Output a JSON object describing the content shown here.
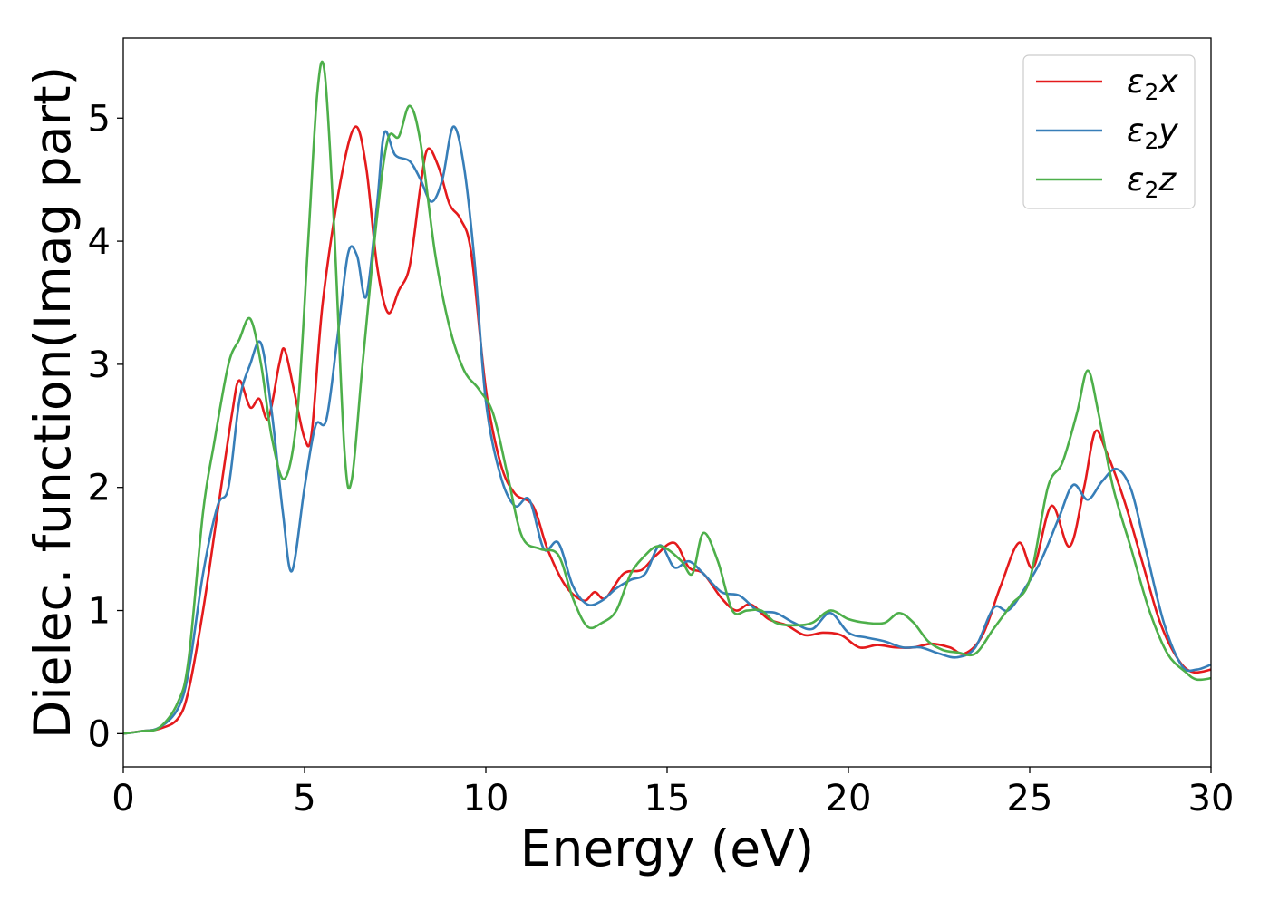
{
  "chart_data": {
    "type": "line",
    "title": "",
    "xlabel": "Energy (eV)",
    "ylabel": "Dielec. function(Imag part)",
    "xlim": [
      0,
      30
    ],
    "ylim": [
      -0.27,
      5.65
    ],
    "xticks": [
      0,
      5,
      10,
      15,
      20,
      25,
      30
    ],
    "yticks": [
      0,
      1,
      2,
      3,
      4,
      5
    ],
    "grid": false,
    "legend_position": "top-right",
    "series": [
      {
        "name": "ε₂x",
        "legend": {
          "base": "ε",
          "sub": "2",
          "suffix": "x"
        },
        "color": "#e41a1c",
        "points": [
          [
            0,
            0
          ],
          [
            0.5,
            0.02
          ],
          [
            1.0,
            0.04
          ],
          [
            1.5,
            0.12
          ],
          [
            1.8,
            0.35
          ],
          [
            2.2,
            1.0
          ],
          [
            2.6,
            1.8
          ],
          [
            3.0,
            2.6
          ],
          [
            3.2,
            2.87
          ],
          [
            3.5,
            2.65
          ],
          [
            3.75,
            2.72
          ],
          [
            4.0,
            2.56
          ],
          [
            4.3,
            3.0
          ],
          [
            4.45,
            3.12
          ],
          [
            4.7,
            2.8
          ],
          [
            5.0,
            2.4
          ],
          [
            5.2,
            2.45
          ],
          [
            5.5,
            3.5
          ],
          [
            6.0,
            4.5
          ],
          [
            6.4,
            4.93
          ],
          [
            6.7,
            4.6
          ],
          [
            7.0,
            3.8
          ],
          [
            7.3,
            3.42
          ],
          [
            7.6,
            3.6
          ],
          [
            7.9,
            3.8
          ],
          [
            8.2,
            4.45
          ],
          [
            8.4,
            4.75
          ],
          [
            8.7,
            4.6
          ],
          [
            9.0,
            4.3
          ],
          [
            9.3,
            4.18
          ],
          [
            9.6,
            3.9
          ],
          [
            10.0,
            2.8
          ],
          [
            10.4,
            2.2
          ],
          [
            10.8,
            1.95
          ],
          [
            11.3,
            1.85
          ],
          [
            11.7,
            1.5
          ],
          [
            12.2,
            1.2
          ],
          [
            12.7,
            1.08
          ],
          [
            13.0,
            1.15
          ],
          [
            13.3,
            1.1
          ],
          [
            13.8,
            1.3
          ],
          [
            14.3,
            1.33
          ],
          [
            14.7,
            1.45
          ],
          [
            15.2,
            1.55
          ],
          [
            15.6,
            1.35
          ],
          [
            16.0,
            1.3
          ],
          [
            16.5,
            1.1
          ],
          [
            16.9,
            1.0
          ],
          [
            17.3,
            1.05
          ],
          [
            17.8,
            0.93
          ],
          [
            18.3,
            0.88
          ],
          [
            18.8,
            0.8
          ],
          [
            19.3,
            0.82
          ],
          [
            19.8,
            0.8
          ],
          [
            20.3,
            0.7
          ],
          [
            20.8,
            0.72
          ],
          [
            21.3,
            0.7
          ],
          [
            21.8,
            0.7
          ],
          [
            22.3,
            0.73
          ],
          [
            22.8,
            0.7
          ],
          [
            23.2,
            0.65
          ],
          [
            23.7,
            0.8
          ],
          [
            24.2,
            1.2
          ],
          [
            24.7,
            1.55
          ],
          [
            25.1,
            1.35
          ],
          [
            25.6,
            1.85
          ],
          [
            26.1,
            1.52
          ],
          [
            26.5,
            2.0
          ],
          [
            26.8,
            2.45
          ],
          [
            27.1,
            2.3
          ],
          [
            27.6,
            1.9
          ],
          [
            28.1,
            1.4
          ],
          [
            28.6,
            0.9
          ],
          [
            29.1,
            0.6
          ],
          [
            29.5,
            0.5
          ],
          [
            30.0,
            0.52
          ]
        ]
      },
      {
        "name": "ε₂y",
        "legend": {
          "base": "ε",
          "sub": "2",
          "suffix": "y"
        },
        "color": "#377eb8",
        "points": [
          [
            0,
            0
          ],
          [
            0.5,
            0.02
          ],
          [
            1.0,
            0.05
          ],
          [
            1.5,
            0.2
          ],
          [
            1.8,
            0.5
          ],
          [
            2.2,
            1.3
          ],
          [
            2.6,
            1.85
          ],
          [
            2.9,
            2.0
          ],
          [
            3.2,
            2.7
          ],
          [
            3.5,
            3.0
          ],
          [
            3.8,
            3.17
          ],
          [
            4.1,
            2.6
          ],
          [
            4.4,
            1.8
          ],
          [
            4.65,
            1.32
          ],
          [
            5.0,
            2.0
          ],
          [
            5.3,
            2.5
          ],
          [
            5.6,
            2.55
          ],
          [
            5.9,
            3.2
          ],
          [
            6.2,
            3.9
          ],
          [
            6.45,
            3.88
          ],
          [
            6.7,
            3.55
          ],
          [
            7.0,
            4.3
          ],
          [
            7.2,
            4.88
          ],
          [
            7.5,
            4.7
          ],
          [
            7.9,
            4.65
          ],
          [
            8.2,
            4.5
          ],
          [
            8.5,
            4.32
          ],
          [
            8.8,
            4.5
          ],
          [
            9.1,
            4.93
          ],
          [
            9.4,
            4.6
          ],
          [
            9.7,
            3.8
          ],
          [
            10.0,
            2.7
          ],
          [
            10.4,
            2.1
          ],
          [
            10.8,
            1.85
          ],
          [
            11.2,
            1.9
          ],
          [
            11.6,
            1.5
          ],
          [
            12.0,
            1.55
          ],
          [
            12.4,
            1.2
          ],
          [
            12.8,
            1.05
          ],
          [
            13.2,
            1.08
          ],
          [
            13.6,
            1.18
          ],
          [
            14.0,
            1.25
          ],
          [
            14.4,
            1.3
          ],
          [
            14.8,
            1.53
          ],
          [
            15.2,
            1.35
          ],
          [
            15.6,
            1.4
          ],
          [
            16.0,
            1.3
          ],
          [
            16.5,
            1.15
          ],
          [
            17.0,
            1.12
          ],
          [
            17.5,
            1.0
          ],
          [
            18.0,
            0.98
          ],
          [
            18.5,
            0.9
          ],
          [
            19.0,
            0.85
          ],
          [
            19.5,
            0.98
          ],
          [
            20.0,
            0.82
          ],
          [
            20.5,
            0.78
          ],
          [
            21.0,
            0.75
          ],
          [
            21.5,
            0.7
          ],
          [
            22.0,
            0.7
          ],
          [
            22.5,
            0.65
          ],
          [
            23.0,
            0.62
          ],
          [
            23.5,
            0.7
          ],
          [
            24.0,
            1.02
          ],
          [
            24.4,
            1.0
          ],
          [
            24.8,
            1.15
          ],
          [
            25.3,
            1.4
          ],
          [
            25.8,
            1.75
          ],
          [
            26.2,
            2.02
          ],
          [
            26.6,
            1.9
          ],
          [
            27.0,
            2.05
          ],
          [
            27.4,
            2.15
          ],
          [
            27.8,
            1.98
          ],
          [
            28.2,
            1.5
          ],
          [
            28.7,
            0.9
          ],
          [
            29.2,
            0.55
          ],
          [
            29.6,
            0.52
          ],
          [
            30.0,
            0.56
          ]
        ]
      },
      {
        "name": "ε₂z",
        "legend": {
          "base": "ε",
          "sub": "2",
          "suffix": "z"
        },
        "color": "#4daf4a",
        "points": [
          [
            0,
            0
          ],
          [
            0.5,
            0.02
          ],
          [
            1.0,
            0.05
          ],
          [
            1.5,
            0.25
          ],
          [
            1.8,
            0.6
          ],
          [
            2.2,
            1.8
          ],
          [
            2.5,
            2.35
          ],
          [
            2.9,
            3.0
          ],
          [
            3.2,
            3.2
          ],
          [
            3.5,
            3.37
          ],
          [
            3.8,
            3.0
          ],
          [
            4.1,
            2.4
          ],
          [
            4.45,
            2.07
          ],
          [
            4.8,
            2.6
          ],
          [
            5.1,
            4.0
          ],
          [
            5.35,
            5.2
          ],
          [
            5.55,
            5.38
          ],
          [
            5.8,
            4.2
          ],
          [
            6.1,
            2.3
          ],
          [
            6.3,
            2.06
          ],
          [
            6.6,
            3.0
          ],
          [
            7.0,
            4.2
          ],
          [
            7.3,
            4.83
          ],
          [
            7.6,
            4.85
          ],
          [
            7.9,
            5.1
          ],
          [
            8.2,
            4.8
          ],
          [
            8.6,
            3.9
          ],
          [
            9.0,
            3.3
          ],
          [
            9.4,
            2.95
          ],
          [
            9.8,
            2.8
          ],
          [
            10.2,
            2.6
          ],
          [
            10.6,
            2.1
          ],
          [
            11.0,
            1.6
          ],
          [
            11.5,
            1.5
          ],
          [
            12.0,
            1.45
          ],
          [
            12.4,
            1.1
          ],
          [
            12.8,
            0.87
          ],
          [
            13.2,
            0.9
          ],
          [
            13.6,
            1.0
          ],
          [
            14.0,
            1.3
          ],
          [
            14.4,
            1.45
          ],
          [
            14.7,
            1.52
          ],
          [
            15.0,
            1.5
          ],
          [
            15.4,
            1.4
          ],
          [
            15.7,
            1.3
          ],
          [
            16.0,
            1.63
          ],
          [
            16.4,
            1.4
          ],
          [
            16.8,
            1.0
          ],
          [
            17.2,
            1.0
          ],
          [
            17.6,
            1.0
          ],
          [
            18.0,
            0.9
          ],
          [
            18.5,
            0.88
          ],
          [
            19.0,
            0.9
          ],
          [
            19.5,
            1.0
          ],
          [
            20.0,
            0.93
          ],
          [
            20.5,
            0.9
          ],
          [
            21.0,
            0.9
          ],
          [
            21.4,
            0.98
          ],
          [
            21.8,
            0.9
          ],
          [
            22.2,
            0.75
          ],
          [
            22.6,
            0.68
          ],
          [
            23.0,
            0.66
          ],
          [
            23.5,
            0.65
          ],
          [
            24.0,
            0.85
          ],
          [
            24.5,
            1.05
          ],
          [
            25.0,
            1.25
          ],
          [
            25.5,
            2.0
          ],
          [
            25.9,
            2.2
          ],
          [
            26.3,
            2.6
          ],
          [
            26.6,
            2.95
          ],
          [
            26.9,
            2.6
          ],
          [
            27.3,
            2.0
          ],
          [
            27.8,
            1.5
          ],
          [
            28.3,
            1.0
          ],
          [
            28.8,
            0.65
          ],
          [
            29.3,
            0.5
          ],
          [
            29.6,
            0.44
          ],
          [
            30.0,
            0.45
          ]
        ]
      }
    ]
  }
}
